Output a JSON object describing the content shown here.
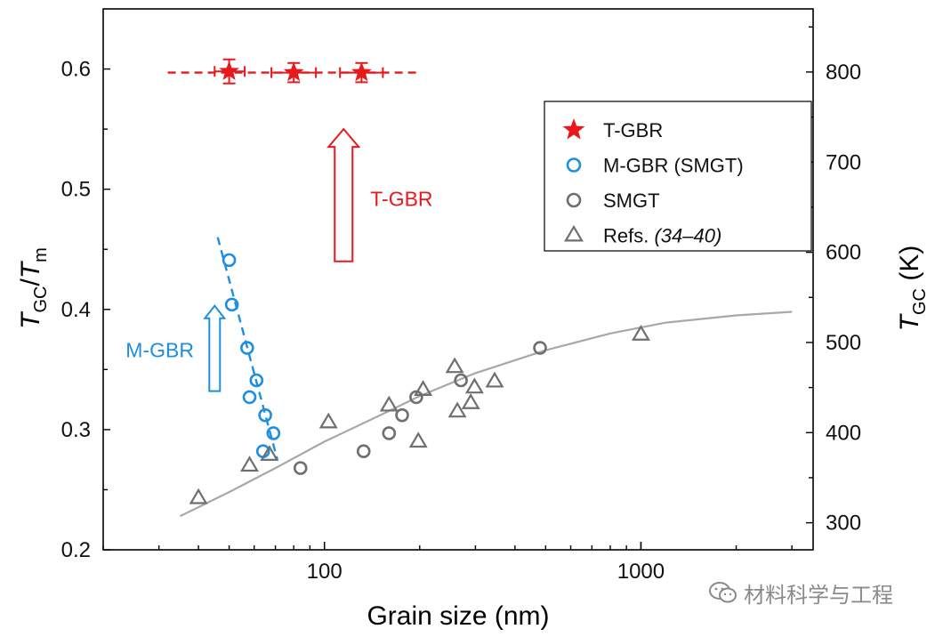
{
  "colors": {
    "red": "#e8191d",
    "blue": "#1d8fe0",
    "gray": "#6f6f6f",
    "fit_gray": "#a8a8a8",
    "axis": "#000000"
  },
  "chart_data": {
    "type": "scatter",
    "xscale": "log",
    "xlim": [
      20,
      3500
    ],
    "ylim": [
      0.2,
      0.65
    ],
    "y2lim": [
      270,
      870
    ],
    "xlabel": "Grain size (nm)",
    "ylabel": {
      "t1": "T",
      "s1": "GC",
      "mid": "/",
      "t2": "T",
      "s2": "m"
    },
    "y2label": {
      "t1": "T",
      "s1": "GC",
      "unit": " (K)"
    },
    "xticks": [
      {
        "value": 100,
        "label": "100"
      },
      {
        "value": 1000,
        "label": "1000"
      }
    ],
    "yticks": [
      {
        "value": 0.2,
        "label": "0.2"
      },
      {
        "value": 0.3,
        "label": "0.3"
      },
      {
        "value": 0.4,
        "label": "0.4"
      },
      {
        "value": 0.5,
        "label": "0.5"
      },
      {
        "value": 0.6,
        "label": "0.6"
      }
    ],
    "y2ticks": [
      {
        "value": 300,
        "label": "300"
      },
      {
        "value": 400,
        "label": "400"
      },
      {
        "value": 500,
        "label": "500"
      },
      {
        "value": 600,
        "label": "600"
      },
      {
        "value": 700,
        "label": "700"
      },
      {
        "value": 800,
        "label": "800"
      }
    ],
    "series": [
      {
        "name": "T-GBR",
        "marker": "star",
        "color": "#e8191d",
        "points": [
          [
            50,
            0.598
          ],
          [
            80,
            0.597
          ],
          [
            131,
            0.597
          ]
        ],
        "xerr": [
          [
            45,
            56
          ],
          [
            68,
            94
          ],
          [
            112,
            153
          ]
        ],
        "yerr": [
          0.01,
          0.008,
          0.008
        ]
      },
      {
        "name": "M-GBR (SMGT)",
        "marker": "circle",
        "color": "#1d8fe0",
        "points": [
          [
            50,
            0.441
          ],
          [
            51,
            0.404
          ],
          [
            57,
            0.368
          ],
          [
            61,
            0.341
          ],
          [
            58,
            0.327
          ],
          [
            65,
            0.312
          ],
          [
            64,
            0.282
          ],
          [
            69,
            0.297
          ]
        ]
      },
      {
        "name": "SMGT",
        "marker": "circle",
        "color": "#6f6f6f",
        "points": [
          [
            84,
            0.268
          ],
          [
            133,
            0.282
          ],
          [
            160,
            0.297
          ],
          [
            176,
            0.312
          ],
          [
            195,
            0.327
          ],
          [
            270,
            0.341
          ],
          [
            480,
            0.368
          ]
        ]
      },
      {
        "name": "Refs.",
        "name_italic": "(34–40)",
        "marker": "triangle",
        "color": "#6f6f6f",
        "points": [
          [
            40,
            0.243
          ],
          [
            58,
            0.27
          ],
          [
            67,
            0.279
          ],
          [
            103,
            0.306
          ],
          [
            160,
            0.32
          ],
          [
            198,
            0.29
          ],
          [
            205,
            0.333
          ],
          [
            258,
            0.352
          ],
          [
            263,
            0.315
          ],
          [
            290,
            0.322
          ],
          [
            298,
            0.335
          ],
          [
            345,
            0.34
          ],
          [
            1000,
            0.379
          ]
        ]
      }
    ],
    "fits": [
      {
        "name": "T-GBR fit",
        "color": "#e8191d",
        "dashed": true,
        "points": [
          [
            32,
            0.597
          ],
          [
            200,
            0.597
          ]
        ]
      },
      {
        "name": "M-GBR fit",
        "color": "#1d8fe0",
        "dashed": true,
        "points": [
          [
            46,
            0.46
          ],
          [
            71,
            0.275
          ]
        ]
      },
      {
        "name": "SMGT fit",
        "color": "#a8a8a8",
        "dashed": false,
        "points": [
          [
            35,
            0.228
          ],
          [
            50,
            0.248
          ],
          [
            70,
            0.268
          ],
          [
            100,
            0.29
          ],
          [
            150,
            0.312
          ],
          [
            200,
            0.328
          ],
          [
            300,
            0.347
          ],
          [
            500,
            0.366
          ],
          [
            800,
            0.38
          ],
          [
            1200,
            0.389
          ],
          [
            2000,
            0.395
          ],
          [
            3000,
            0.398
          ]
        ]
      }
    ],
    "annotations": [
      {
        "name": "tgbr-arrow",
        "text": "T-GBR",
        "color": "#e8191d",
        "x": 115,
        "y_from": 0.44,
        "y_to": 0.55
      },
      {
        "name": "mgbr-arrow",
        "text": "M-GBR",
        "color": "#1d8fe0",
        "x": 45,
        "y_from": 0.332,
        "y_to": 0.403
      }
    ],
    "legend": {
      "placement": "top-right",
      "entries": [
        {
          "marker": "star",
          "color": "#e8191d",
          "text": "T-GBR"
        },
        {
          "marker": "circle",
          "color": "#1d8fe0",
          "text": "M-GBR (SMGT)"
        },
        {
          "marker": "circle",
          "color": "#6f6f6f",
          "text": "SMGT"
        },
        {
          "marker": "triangle",
          "color": "#6f6f6f",
          "text": "Refs. ",
          "italic": "(34–40)"
        }
      ]
    }
  },
  "watermark": {
    "text": "材料科学与工程",
    "icon": "wechat-icon"
  }
}
